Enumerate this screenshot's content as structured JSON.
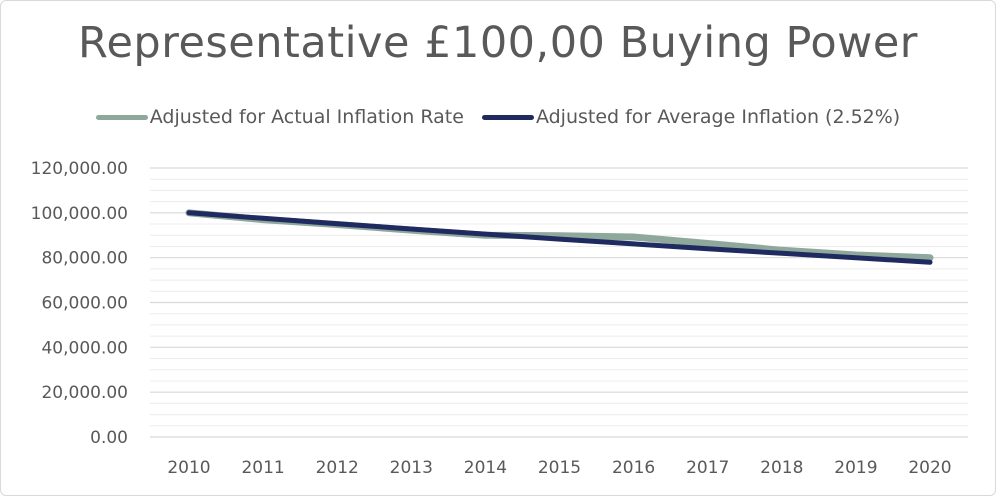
{
  "chart_data": {
    "type": "line",
    "title": "Representative £100,00 Buying Power",
    "xlabel": "",
    "ylabel": "",
    "x": [
      "2010",
      "2011",
      "2012",
      "2013",
      "2014",
      "2015",
      "2016",
      "2017",
      "2018",
      "2019",
      "2020"
    ],
    "ylim": [
      0,
      120000
    ],
    "yticks": [
      "0.00",
      "20,000.00",
      "40,000.00",
      "60,000.00",
      "80,000.00",
      "100,000.00",
      "120,000.00"
    ],
    "grid": true,
    "legend_position": "top",
    "series": [
      {
        "name": "Adjusted for Actual Inflation Rate",
        "color": "#8fa89c",
        "values": [
          100000,
          97000,
          94800,
          92300,
          90000,
          89800,
          89200,
          86300,
          83300,
          81200,
          80000
        ]
      },
      {
        "name": "Adjusted for Average Inflation (2.52%)",
        "color": "#1f2a60",
        "values": [
          100000,
          97540,
          95140,
          92810,
          90530,
          88300,
          86130,
          84010,
          81940,
          79920,
          77960
        ]
      }
    ]
  }
}
